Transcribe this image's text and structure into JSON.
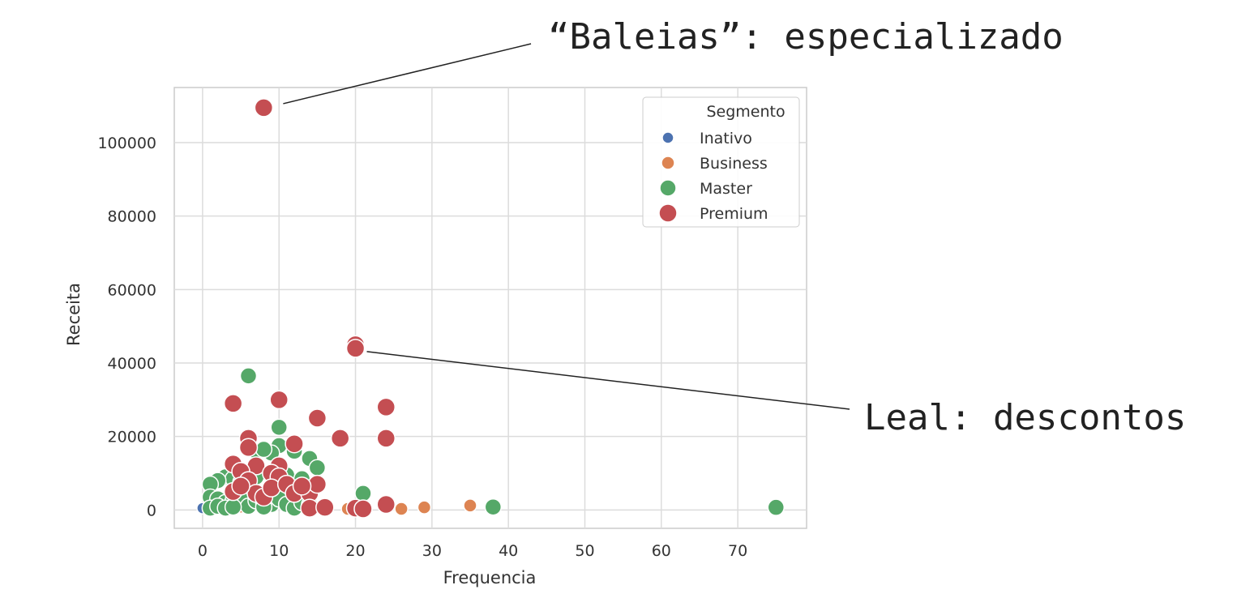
{
  "annotations": [
    {
      "text": "“Baleias”: especializado",
      "target": {
        "x": 8,
        "y": 109500
      }
    },
    {
      "text": "Leal: descontos",
      "target": {
        "x": 20,
        "y": 44000
      }
    }
  ],
  "chart_data": {
    "type": "scatter",
    "xlabel": "Frequencia",
    "ylabel": "Receita",
    "xlim": [
      -3.7,
      79
    ],
    "ylim": [
      -5000,
      115000
    ],
    "xticks": [
      0,
      10,
      20,
      30,
      40,
      50,
      60,
      70
    ],
    "yticks": [
      0,
      20000,
      40000,
      60000,
      80000,
      100000
    ],
    "grid": true,
    "legend": {
      "title": "Segmento",
      "position": "top-right"
    },
    "series": [
      {
        "name": "Inativo",
        "color": "#4c72b0",
        "size": 7,
        "points": [
          [
            0,
            500
          ],
          [
            1,
            300
          ],
          [
            2,
            800
          ]
        ]
      },
      {
        "name": "Business",
        "color": "#dd8452",
        "size": 8,
        "points": [
          [
            19,
            300
          ],
          [
            21,
            400
          ],
          [
            26,
            300
          ],
          [
            29,
            700
          ],
          [
            35,
            1200
          ],
          [
            3,
            600
          ],
          [
            5,
            900
          ],
          [
            8,
            500
          ]
        ]
      },
      {
        "name": "Master",
        "color": "#55a868",
        "size": 10,
        "points": [
          [
            6,
            36500
          ],
          [
            10,
            22500
          ],
          [
            10,
            17500
          ],
          [
            9,
            15500
          ],
          [
            7,
            16000
          ],
          [
            8,
            16500
          ],
          [
            12,
            16000
          ],
          [
            14,
            14000
          ],
          [
            15,
            11500
          ],
          [
            3,
            9000
          ],
          [
            4,
            8500
          ],
          [
            2,
            8000
          ],
          [
            1,
            7000
          ],
          [
            5,
            7500
          ],
          [
            6,
            7000
          ],
          [
            7,
            9000
          ],
          [
            9,
            9500
          ],
          [
            11,
            9500
          ],
          [
            13,
            8500
          ],
          [
            1,
            3500
          ],
          [
            2,
            3000
          ],
          [
            3,
            2000
          ],
          [
            4,
            2500
          ],
          [
            5,
            3000
          ],
          [
            6,
            1000
          ],
          [
            7,
            2500
          ],
          [
            8,
            2000
          ],
          [
            9,
            1500
          ],
          [
            10,
            3000
          ],
          [
            11,
            1500
          ],
          [
            12,
            500
          ],
          [
            13,
            2000
          ],
          [
            14,
            1500
          ],
          [
            1,
            500
          ],
          [
            2,
            1000
          ],
          [
            3,
            500
          ],
          [
            4,
            800
          ],
          [
            8,
            800
          ],
          [
            21,
            4500
          ],
          [
            38,
            800
          ],
          [
            75,
            700
          ]
        ]
      },
      {
        "name": "Premium",
        "color": "#c44e52",
        "size": 11,
        "points": [
          [
            8,
            109500
          ],
          [
            20,
            45000
          ],
          [
            20,
            44000
          ],
          [
            10,
            30000
          ],
          [
            4,
            29000
          ],
          [
            24,
            28000
          ],
          [
            15,
            25000
          ],
          [
            6,
            19500
          ],
          [
            18,
            19500
          ],
          [
            24,
            19500
          ],
          [
            12,
            18000
          ],
          [
            6,
            17000
          ],
          [
            4,
            12500
          ],
          [
            7,
            12000
          ],
          [
            10,
            12000
          ],
          [
            5,
            10500
          ],
          [
            9,
            10000
          ],
          [
            6,
            8000
          ],
          [
            10,
            9000
          ],
          [
            4,
            5000
          ],
          [
            7,
            4500
          ],
          [
            5,
            6500
          ],
          [
            8,
            3500
          ],
          [
            9,
            6000
          ],
          [
            11,
            7000
          ],
          [
            12,
            4500
          ],
          [
            14,
            4500
          ],
          [
            15,
            7000
          ],
          [
            13,
            6500
          ],
          [
            14,
            500
          ],
          [
            16,
            700
          ],
          [
            20,
            500
          ],
          [
            21,
            300
          ],
          [
            24,
            1500
          ]
        ]
      }
    ]
  }
}
